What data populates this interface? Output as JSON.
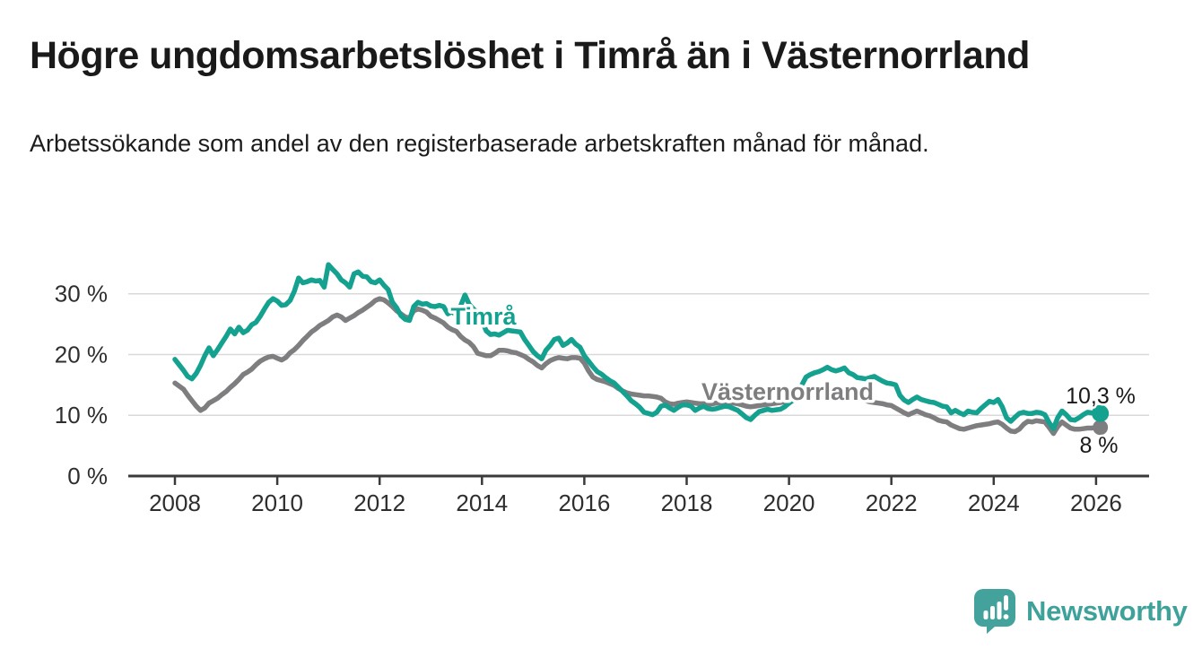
{
  "header": {
    "title": "Högre ungdomsarbetslöshet i Timrå än i Västernorrland",
    "subtitle": "Arbetssökande som andel av den registerbaserade arbetskraften månad för månad."
  },
  "branding": {
    "name": "Newsworthy",
    "icon": "newsworthy-chart-bubble-icon",
    "color": "#3EA29B",
    "icon_color": "#43A29C"
  },
  "colors": {
    "background": "#ffffff",
    "grid": "#d9d9d9",
    "axis": "#3a3a3a",
    "tick_text": "#2e2e2e",
    "title_text": "#1a1a1a",
    "timra": "#14A18F",
    "vasternorrland": "#7E7E81"
  },
  "chart_data": {
    "type": "line",
    "x_unit": "month",
    "x_range": [
      "2008-01",
      "2026-02"
    ],
    "x_tick_labels": [
      "2008",
      "2010",
      "2012",
      "2014",
      "2016",
      "2018",
      "2020",
      "2022",
      "2024",
      "2026"
    ],
    "y_tick_labels": [
      "0 %",
      "10 %",
      "20 %",
      "30 %"
    ],
    "y_tick_values": [
      0,
      10,
      20,
      30
    ],
    "ylim": [
      0,
      36
    ],
    "grid": "horizontal",
    "legend_position": "inline-labels",
    "series": [
      {
        "name": "Timrå",
        "color": "#14A18F",
        "end_label": "10,3 %",
        "end_value": 10.3,
        "values": [
          19.2,
          18.3,
          17.4,
          16.4,
          16.0,
          16.9,
          18.2,
          19.8,
          21.1,
          19.8,
          20.8,
          21.9,
          23.0,
          24.2,
          23.4,
          24.5,
          23.6,
          24.0,
          24.9,
          25.3,
          26.3,
          27.5,
          28.6,
          29.2,
          28.8,
          28.1,
          28.2,
          28.9,
          30.4,
          32.6,
          31.8,
          32.0,
          32.3,
          32.1,
          32.2,
          31.1,
          34.8,
          34.0,
          33.3,
          32.3,
          31.8,
          31.1,
          33.3,
          33.6,
          32.9,
          32.8,
          32.0,
          31.8,
          32.3,
          31.4,
          30.7,
          28.6,
          27.7,
          26.4,
          25.8,
          25.6,
          27.9,
          28.6,
          28.3,
          28.4,
          28.0,
          27.9,
          28.1,
          27.9,
          26.7,
          27.1,
          26.4,
          28.0,
          29.8,
          28.3,
          27.5,
          26.9,
          25.5,
          23.9,
          23.3,
          23.4,
          23.2,
          23.6,
          24.0,
          23.9,
          23.8,
          23.7,
          22.5,
          21.5,
          20.5,
          19.8,
          19.3,
          20.7,
          21.5,
          22.5,
          22.7,
          21.5,
          21.9,
          22.5,
          21.7,
          21.2,
          19.8,
          18.9,
          18.0,
          17.2,
          16.8,
          16.2,
          15.7,
          15.3,
          14.6,
          13.9,
          13.2,
          12.4,
          11.9,
          11.3,
          10.5,
          10.3,
          10.1,
          10.5,
          11.5,
          11.7,
          11.2,
          10.8,
          11.3,
          11.7,
          11.7,
          11.5,
          10.8,
          11.2,
          11.5,
          11.1,
          11.0,
          11.1,
          11.3,
          11.5,
          11.4,
          11.1,
          10.8,
          10.2,
          9.6,
          9.3,
          10.0,
          10.6,
          10.8,
          11.0,
          10.8,
          10.9,
          11.0,
          11.4,
          12.0,
          12.5,
          13.5,
          15.0,
          16.3,
          16.7,
          17.0,
          17.2,
          17.5,
          17.9,
          17.5,
          17.3,
          17.5,
          17.8,
          17.0,
          16.7,
          16.2,
          16.1,
          16.0,
          16.2,
          16.4,
          16.0,
          15.6,
          15.3,
          15.2,
          15.0,
          13.3,
          12.5,
          12.1,
          12.6,
          13.0,
          12.6,
          12.4,
          12.2,
          12.1,
          11.8,
          11.5,
          11.4,
          10.4,
          10.8,
          10.4,
          10.1,
          10.7,
          10.5,
          10.4,
          11.1,
          11.7,
          12.3,
          12.1,
          12.6,
          11.4,
          9.6,
          9.0,
          9.7,
          10.3,
          10.5,
          10.3,
          10.3,
          10.5,
          10.4,
          10.1,
          8.8,
          7.8,
          9.6,
          10.7,
          10.1,
          9.3,
          9.2,
          9.6,
          10.1,
          10.5,
          10.4,
          10.4,
          10.3
        ]
      },
      {
        "name": "Västernorrland",
        "color": "#7E7E81",
        "end_label": "8 %",
        "end_value": 8,
        "values": [
          15.3,
          14.8,
          14.3,
          13.3,
          12.4,
          11.5,
          10.8,
          11.2,
          12.0,
          12.4,
          12.8,
          13.4,
          13.9,
          14.6,
          15.2,
          15.9,
          16.7,
          17.1,
          17.6,
          18.3,
          18.9,
          19.3,
          19.6,
          19.7,
          19.4,
          19.1,
          19.5,
          20.3,
          20.8,
          21.5,
          22.3,
          23.0,
          23.7,
          24.2,
          24.8,
          25.2,
          25.6,
          26.2,
          26.5,
          26.2,
          25.6,
          26.0,
          26.4,
          26.9,
          27.3,
          27.8,
          28.3,
          28.9,
          29.2,
          29.0,
          28.5,
          27.9,
          27.2,
          26.7,
          26.2,
          26.0,
          27.2,
          27.5,
          27.3,
          27.0,
          26.3,
          26.0,
          25.6,
          25.2,
          24.5,
          24.1,
          23.8,
          23.0,
          22.4,
          22.0,
          21.3,
          20.2,
          20.0,
          19.8,
          19.8,
          20.2,
          20.7,
          20.7,
          20.6,
          20.4,
          20.3,
          20.0,
          19.7,
          19.2,
          18.8,
          18.2,
          17.8,
          18.5,
          19.0,
          19.3,
          19.5,
          19.4,
          19.3,
          19.5,
          19.5,
          19.4,
          18.6,
          17.3,
          16.3,
          15.9,
          15.7,
          15.5,
          15.2,
          14.9,
          14.4,
          14.0,
          13.7,
          13.5,
          13.4,
          13.3,
          13.2,
          13.2,
          13.1,
          13.0,
          12.8,
          12.2,
          11.9,
          11.8,
          12.0,
          12.1,
          12.2,
          12.1,
          12.0,
          11.9,
          11.9,
          11.8,
          11.9,
          12.0,
          12.1,
          12.2,
          12.1,
          12.0,
          11.9,
          11.7,
          11.5,
          11.4,
          11.5,
          11.6,
          11.7,
          11.8,
          11.9,
          12.0,
          12.1,
          12.2,
          12.4,
          12.6,
          13.2,
          14.0,
          14.4,
          14.6,
          14.5,
          14.3,
          14.2,
          14.0,
          13.9,
          13.8,
          13.7,
          13.5,
          13.3,
          13.0,
          12.8,
          12.6,
          12.4,
          12.2,
          12.1,
          12.0,
          11.9,
          11.7,
          11.6,
          11.2,
          10.8,
          10.4,
          10.1,
          10.4,
          10.7,
          10.4,
          10.1,
          9.9,
          9.6,
          9.2,
          9.0,
          8.9,
          8.4,
          8.1,
          7.8,
          7.7,
          7.9,
          8.1,
          8.3,
          8.4,
          8.5,
          8.6,
          8.8,
          8.9,
          8.5,
          7.9,
          7.4,
          7.3,
          7.7,
          8.5,
          9.0,
          8.9,
          9.1,
          9.0,
          8.9,
          8.0,
          7.0,
          8.1,
          8.9,
          8.4,
          7.9,
          7.7,
          7.7,
          7.8,
          7.9,
          7.9,
          8.0,
          8.0
        ]
      }
    ]
  }
}
